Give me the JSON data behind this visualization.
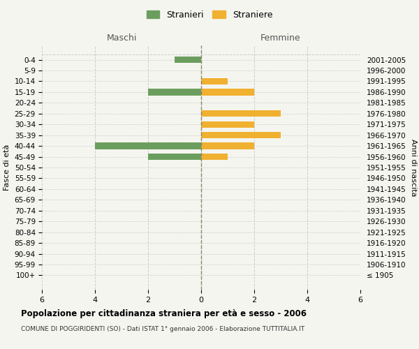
{
  "age_groups": [
    "100+",
    "95-99",
    "90-94",
    "85-89",
    "80-84",
    "75-79",
    "70-74",
    "65-69",
    "60-64",
    "55-59",
    "50-54",
    "45-49",
    "40-44",
    "35-39",
    "30-34",
    "25-29",
    "20-24",
    "15-19",
    "10-14",
    "5-9",
    "0-4"
  ],
  "birth_years": [
    "≤ 1905",
    "1906-1910",
    "1911-1915",
    "1916-1920",
    "1921-1925",
    "1926-1930",
    "1931-1935",
    "1936-1940",
    "1941-1945",
    "1946-1950",
    "1951-1955",
    "1956-1960",
    "1961-1965",
    "1966-1970",
    "1971-1975",
    "1976-1980",
    "1981-1985",
    "1986-1990",
    "1991-1995",
    "1996-2000",
    "2001-2005"
  ],
  "maschi": [
    0,
    0,
    0,
    0,
    0,
    0,
    0,
    0,
    0,
    0,
    0,
    2,
    4,
    0,
    0,
    0,
    0,
    2,
    0,
    0,
    1
  ],
  "femmine": [
    0,
    0,
    0,
    0,
    0,
    0,
    0,
    0,
    0,
    0,
    0,
    1,
    2,
    3,
    2,
    3,
    0,
    2,
    1,
    0,
    0
  ],
  "color_maschi": "#6b9e5e",
  "color_femmine": "#f0b030",
  "title": "Popolazione per cittadinanza straniera per età e sesso - 2006",
  "subtitle": "COMUNE DI POGGIRIDENTI (SO) - Dati ISTAT 1° gennaio 2006 - Elaborazione TUTTITALIA.IT",
  "xlabel_left": "Maschi",
  "xlabel_right": "Femmine",
  "ylabel_left": "Fasce di età",
  "ylabel_right": "Anni di nascita",
  "legend_maschi": "Stranieri",
  "legend_femmine": "Straniere",
  "xlim": 6,
  "background_color": "#f5f5f0",
  "grid_color": "#cccccc"
}
